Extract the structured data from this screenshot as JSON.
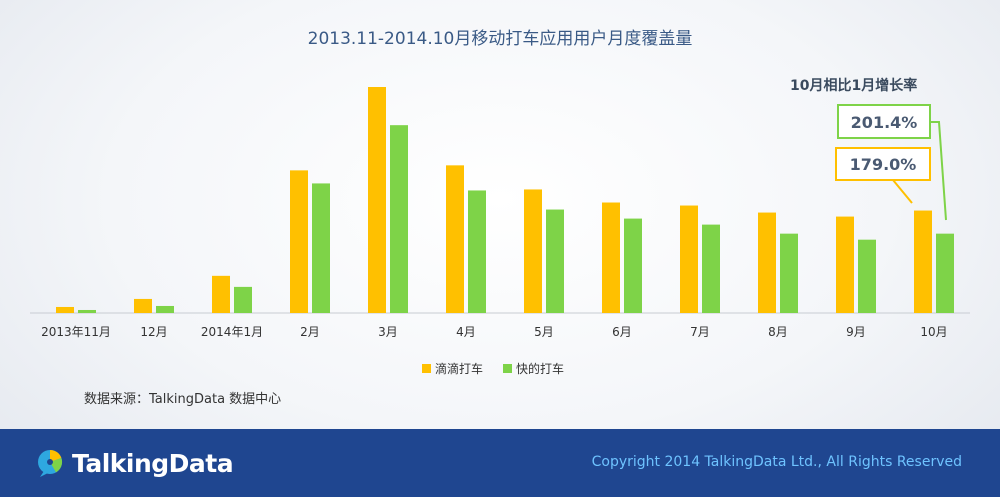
{
  "chart_data": {
    "type": "bar",
    "title": "2013.11-2014.10月移动打车应用用户月度覆盖量",
    "categories": [
      "2013年11月",
      "12月",
      "2014年1月",
      "2月",
      "3月",
      "4月",
      "5月",
      "6月",
      "7月",
      "8月",
      "9月",
      "10月"
    ],
    "series": [
      {
        "name": "滴滴打车",
        "color": "#ffc000",
        "values": [
          6,
          14,
          37,
          142,
          225,
          147,
          123,
          110,
          107,
          100,
          96,
          102
        ]
      },
      {
        "name": "快的打车",
        "color": "#7ed348",
        "values": [
          3,
          7,
          26,
          129,
          187,
          122,
          103,
          94,
          88,
          79,
          73,
          79
        ]
      }
    ],
    "ylim": [
      0,
      230
    ],
    "grid": false,
    "legend_position": "bottom",
    "annotation": {
      "heading": "10月相比1月增长率",
      "items": [
        {
          "label": "201.4%",
          "color": "#7ed348"
        },
        {
          "label": "179.0%",
          "color": "#ffc000"
        }
      ]
    }
  },
  "source_text": "数据来源：TalkingData 数据中心",
  "footer": {
    "logo_text": "TalkingData",
    "copyright": "Copyright 2014 TalkingData Ltd., All Rights Reserved"
  }
}
